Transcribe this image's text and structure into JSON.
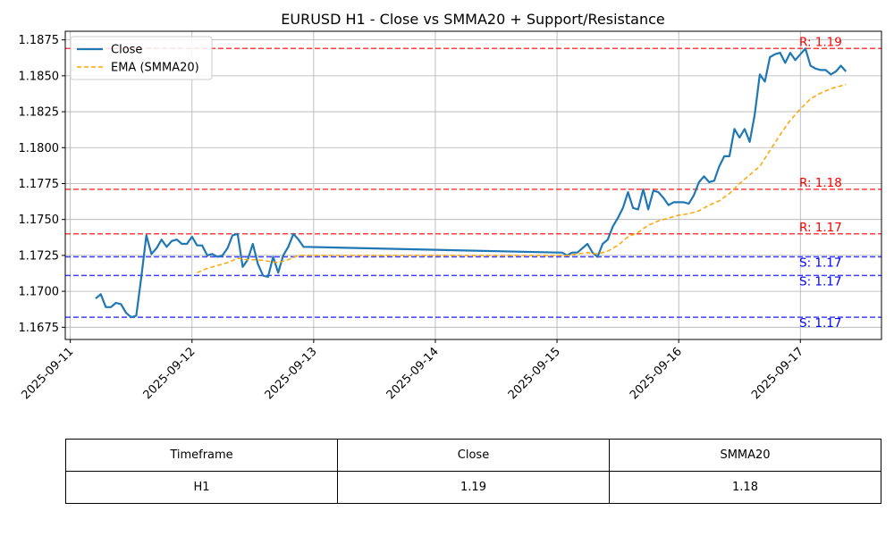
{
  "chart_data": {
    "type": "line",
    "title": "EURUSD H1 - Close vs SMMA20 + Support/Resistance",
    "xlabel": "",
    "ylabel": "",
    "ylim": [
      1.16665,
      1.1881
    ],
    "xlim": [
      "2025-09-10T23:00",
      "2025-09-17T16:00"
    ],
    "grid": true,
    "legend": "top-left",
    "x_ticks": [
      "2025-09-11",
      "2025-09-12",
      "2025-09-13",
      "2025-09-14",
      "2025-09-15",
      "2025-09-16",
      "2025-09-17"
    ],
    "y_ticks": [
      "1.1675",
      "1.1700",
      "1.1725",
      "1.1750",
      "1.1775",
      "1.1800",
      "1.1825",
      "1.1850",
      "1.1875"
    ],
    "series": [
      {
        "name": "Close",
        "color": "#1f77b4",
        "style": "solid",
        "points": [
          [
            "2025-09-11T05:00",
            1.1695
          ],
          [
            "2025-09-11T06:00",
            1.1698
          ],
          [
            "2025-09-11T07:00",
            1.1689
          ],
          [
            "2025-09-11T08:00",
            1.1689
          ],
          [
            "2025-09-11T09:00",
            1.1692
          ],
          [
            "2025-09-11T10:00",
            1.1691
          ],
          [
            "2025-09-11T11:00",
            1.1685
          ],
          [
            "2025-09-11T12:00",
            1.1682
          ],
          [
            "2025-09-11T13:00",
            1.1683
          ],
          [
            "2025-09-11T14:00",
            1.171
          ],
          [
            "2025-09-11T15:00",
            1.1739
          ],
          [
            "2025-09-11T16:00",
            1.1726
          ],
          [
            "2025-09-11T17:00",
            1.173
          ],
          [
            "2025-09-11T18:00",
            1.1736
          ],
          [
            "2025-09-11T19:00",
            1.1731
          ],
          [
            "2025-09-11T20:00",
            1.1735
          ],
          [
            "2025-09-11T21:00",
            1.1736
          ],
          [
            "2025-09-11T22:00",
            1.1733
          ],
          [
            "2025-09-11T23:00",
            1.1733
          ],
          [
            "2025-09-12T00:00",
            1.1738
          ],
          [
            "2025-09-12T01:00",
            1.1732
          ],
          [
            "2025-09-12T02:00",
            1.1732
          ],
          [
            "2025-09-12T03:00",
            1.1725
          ],
          [
            "2025-09-12T04:00",
            1.1726
          ],
          [
            "2025-09-12T05:00",
            1.1724
          ],
          [
            "2025-09-12T06:00",
            1.1725
          ],
          [
            "2025-09-12T07:00",
            1.173
          ],
          [
            "2025-09-12T08:00",
            1.1739
          ],
          [
            "2025-09-12T09:00",
            1.174
          ],
          [
            "2025-09-12T10:00",
            1.1717
          ],
          [
            "2025-09-12T11:00",
            1.1722
          ],
          [
            "2025-09-12T12:00",
            1.1733
          ],
          [
            "2025-09-12T13:00",
            1.1719
          ],
          [
            "2025-09-12T14:00",
            1.1711
          ],
          [
            "2025-09-12T15:00",
            1.171
          ],
          [
            "2025-09-12T16:00",
            1.1724
          ],
          [
            "2025-09-12T17:00",
            1.1713
          ],
          [
            "2025-09-12T18:00",
            1.1725
          ],
          [
            "2025-09-12T19:00",
            1.1731
          ],
          [
            "2025-09-12T20:00",
            1.174
          ],
          [
            "2025-09-12T21:00",
            1.1736
          ],
          [
            "2025-09-12T22:00",
            1.1731
          ],
          [
            "2025-09-15T00:00",
            1.1727
          ],
          [
            "2025-09-15T01:00",
            1.1727
          ],
          [
            "2025-09-15T02:00",
            1.1725
          ],
          [
            "2025-09-15T03:00",
            1.1727
          ],
          [
            "2025-09-15T04:00",
            1.1727
          ],
          [
            "2025-09-15T05:00",
            1.173
          ],
          [
            "2025-09-15T06:00",
            1.1733
          ],
          [
            "2025-09-15T07:00",
            1.1727
          ],
          [
            "2025-09-15T08:00",
            1.1724
          ],
          [
            "2025-09-15T09:00",
            1.1733
          ],
          [
            "2025-09-15T10:00",
            1.1736
          ],
          [
            "2025-09-15T11:00",
            1.1745
          ],
          [
            "2025-09-15T12:00",
            1.1751
          ],
          [
            "2025-09-15T13:00",
            1.1758
          ],
          [
            "2025-09-15T14:00",
            1.1769
          ],
          [
            "2025-09-15T15:00",
            1.1758
          ],
          [
            "2025-09-15T16:00",
            1.1757
          ],
          [
            "2025-09-15T17:00",
            1.1771
          ],
          [
            "2025-09-15T18:00",
            1.1757
          ],
          [
            "2025-09-15T19:00",
            1.177
          ],
          [
            "2025-09-15T20:00",
            1.1769
          ],
          [
            "2025-09-15T21:00",
            1.1765
          ],
          [
            "2025-09-15T22:00",
            1.176
          ],
          [
            "2025-09-15T23:00",
            1.1762
          ],
          [
            "2025-09-16T00:00",
            1.1762
          ],
          [
            "2025-09-16T01:00",
            1.1762
          ],
          [
            "2025-09-16T02:00",
            1.1761
          ],
          [
            "2025-09-16T03:00",
            1.1767
          ],
          [
            "2025-09-16T04:00",
            1.1776
          ],
          [
            "2025-09-16T05:00",
            1.178
          ],
          [
            "2025-09-16T06:00",
            1.1776
          ],
          [
            "2025-09-16T07:00",
            1.1777
          ],
          [
            "2025-09-16T08:00",
            1.1787
          ],
          [
            "2025-09-16T09:00",
            1.1794
          ],
          [
            "2025-09-16T10:00",
            1.1794
          ],
          [
            "2025-09-16T11:00",
            1.1813
          ],
          [
            "2025-09-16T12:00",
            1.1807
          ],
          [
            "2025-09-16T13:00",
            1.1813
          ],
          [
            "2025-09-16T14:00",
            1.1804
          ],
          [
            "2025-09-16T15:00",
            1.1823
          ],
          [
            "2025-09-16T16:00",
            1.1851
          ],
          [
            "2025-09-16T17:00",
            1.1846
          ],
          [
            "2025-09-16T18:00",
            1.1863
          ],
          [
            "2025-09-16T19:00",
            1.1865
          ],
          [
            "2025-09-16T20:00",
            1.1866
          ],
          [
            "2025-09-16T21:00",
            1.1859
          ],
          [
            "2025-09-16T22:00",
            1.1866
          ],
          [
            "2025-09-16T23:00",
            1.1861
          ],
          [
            "2025-09-17T00:00",
            1.1865
          ],
          [
            "2025-09-17T01:00",
            1.1869
          ],
          [
            "2025-09-17T02:00",
            1.1857
          ],
          [
            "2025-09-17T03:00",
            1.1855
          ],
          [
            "2025-09-17T04:00",
            1.1854
          ],
          [
            "2025-09-17T05:00",
            1.1854
          ],
          [
            "2025-09-17T06:00",
            1.1851
          ],
          [
            "2025-09-17T07:00",
            1.1853
          ],
          [
            "2025-09-17T08:00",
            1.1857
          ],
          [
            "2025-09-17T09:00",
            1.1853
          ]
        ]
      },
      {
        "name": "EMA (SMMA20)",
        "color": "#ffa500",
        "style": "dashed",
        "points": [
          [
            "2025-09-12T01:00",
            1.1713
          ],
          [
            "2025-09-12T03:00",
            1.1716
          ],
          [
            "2025-09-12T05:00",
            1.1718
          ],
          [
            "2025-09-12T07:00",
            1.172
          ],
          [
            "2025-09-12T09:00",
            1.1723
          ],
          [
            "2025-09-12T11:00",
            1.1722
          ],
          [
            "2025-09-12T13:00",
            1.1722
          ],
          [
            "2025-09-12T15:00",
            1.1721
          ],
          [
            "2025-09-12T17:00",
            1.172
          ],
          [
            "2025-09-12T19:00",
            1.1722
          ],
          [
            "2025-09-12T21:00",
            1.1725
          ],
          [
            "2025-09-12T22:00",
            1.1725
          ],
          [
            "2025-09-15T00:00",
            1.1725
          ],
          [
            "2025-09-15T02:00",
            1.1725
          ],
          [
            "2025-09-15T04:00",
            1.1726
          ],
          [
            "2025-09-15T06:00",
            1.1727
          ],
          [
            "2025-09-15T08:00",
            1.1726
          ],
          [
            "2025-09-15T10:00",
            1.1728
          ],
          [
            "2025-09-15T12:00",
            1.1732
          ],
          [
            "2025-09-15T14:00",
            1.1738
          ],
          [
            "2025-09-15T16:00",
            1.1741
          ],
          [
            "2025-09-15T18:00",
            1.1746
          ],
          [
            "2025-09-15T20:00",
            1.1749
          ],
          [
            "2025-09-15T22:00",
            1.1751
          ],
          [
            "2025-09-16T00:00",
            1.1753
          ],
          [
            "2025-09-16T02:00",
            1.1754
          ],
          [
            "2025-09-16T04:00",
            1.1756
          ],
          [
            "2025-09-16T06:00",
            1.176
          ],
          [
            "2025-09-16T08:00",
            1.1763
          ],
          [
            "2025-09-16T10:00",
            1.1768
          ],
          [
            "2025-09-16T12:00",
            1.1775
          ],
          [
            "2025-09-16T14:00",
            1.1781
          ],
          [
            "2025-09-16T16:00",
            1.1787
          ],
          [
            "2025-09-16T18:00",
            1.1798
          ],
          [
            "2025-09-16T20:00",
            1.1809
          ],
          [
            "2025-09-16T22:00",
            1.1819
          ],
          [
            "2025-09-17T00:00",
            1.1827
          ],
          [
            "2025-09-17T02:00",
            1.1834
          ],
          [
            "2025-09-17T04:00",
            1.1838
          ],
          [
            "2025-09-17T06:00",
            1.1841
          ],
          [
            "2025-09-17T08:00",
            1.1843
          ],
          [
            "2025-09-17T09:00",
            1.1844
          ]
        ]
      }
    ],
    "levels": [
      {
        "kind": "resistance",
        "value": 1.1869,
        "label": "R: 1.19",
        "color": "#ff0000"
      },
      {
        "kind": "resistance",
        "value": 1.1771,
        "label": "R: 1.18",
        "color": "#ff0000"
      },
      {
        "kind": "resistance",
        "value": 1.174,
        "label": "R: 1.17",
        "color": "#ff0000"
      },
      {
        "kind": "support",
        "value": 1.1724,
        "label": "S: 1.17",
        "color": "#0000ff"
      },
      {
        "kind": "support",
        "value": 1.1711,
        "label": "S: 1.17",
        "color": "#0000ff"
      },
      {
        "kind": "support",
        "value": 1.1682,
        "label": "S: 1.17",
        "color": "#0000ff"
      }
    ]
  },
  "summary_table": {
    "headers": [
      "Timeframe",
      "Close",
      "SMMA20"
    ],
    "rows": [
      [
        "H1",
        "1.19",
        "1.18"
      ]
    ]
  }
}
